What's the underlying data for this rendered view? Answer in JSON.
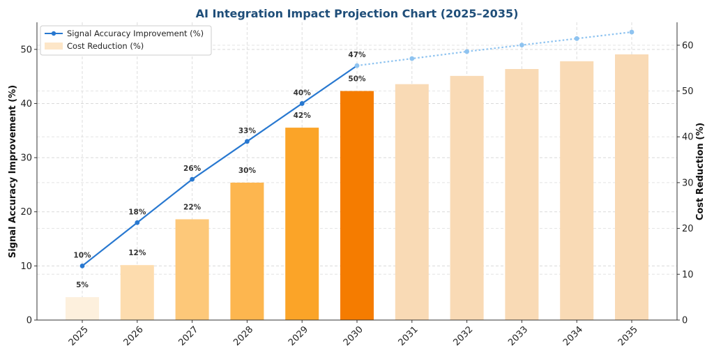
{
  "chart_data": {
    "type": "bar+line",
    "title": "AI Integration Impact Projection Chart (2025–2035)",
    "xlabel": "",
    "ylabel_left": "Signal Accuracy Improvement (%)",
    "ylabel_right": "Cost Reduction (%)",
    "ylim_left": [
      0,
      55
    ],
    "ylim_right": [
      0,
      65
    ],
    "yticks_left": [
      0,
      10,
      20,
      30,
      40,
      50
    ],
    "yticks_right": [
      0,
      10,
      20,
      30,
      40,
      50,
      60
    ],
    "grid": true,
    "legend_position": "top-left",
    "categories": [
      "2025",
      "2026",
      "2027",
      "2028",
      "2029",
      "2030",
      "2031",
      "2032",
      "2033",
      "2034",
      "2035"
    ],
    "series": [
      {
        "name": "Signal Accuracy Improvement (%)",
        "type": "line",
        "axis": "left",
        "color": "#2878d0",
        "projection_color": "#8ec3f0",
        "values": [
          10,
          18,
          26,
          33,
          40,
          47,
          48.3,
          49.6,
          50.8,
          52.0,
          53.2
        ],
        "labels": [
          "10%",
          "18%",
          "26%",
          "33%",
          "40%",
          "47%",
          "",
          "",
          "",
          "",
          ""
        ]
      },
      {
        "name": "Cost Reduction (%)",
        "type": "bar",
        "axis": "right",
        "values": [
          5,
          12,
          22,
          30,
          42,
          50,
          51.5,
          53.3,
          54.8,
          56.5,
          58
        ],
        "labels": [
          "5%",
          "12%",
          "22%",
          "30%",
          "42%",
          "50%",
          "",
          "",
          "",
          "",
          ""
        ],
        "colors": [
          "#fdf0dd",
          "#fddcae",
          "#fdc879",
          "#fdb64f",
          "#fba428",
          "#f57c00",
          "#f9dab5",
          "#f9dab5",
          "#f9dab5",
          "#f9dab5",
          "#f9dab5"
        ]
      }
    ],
    "legend_colors": {
      "line": "#2878d0",
      "bar": "#fde6c8"
    }
  }
}
